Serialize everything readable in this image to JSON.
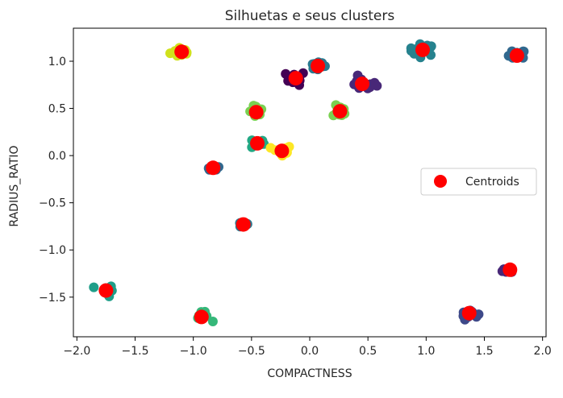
{
  "chart_data": {
    "type": "scatter",
    "title": "Silhuetas e seus clusters",
    "xlabel": "COMPACTNESS",
    "ylabel": "RADIUS_RATIO",
    "xlim": [
      -2.03,
      2.03
    ],
    "ylim": [
      -1.92,
      1.35
    ],
    "xticks": [
      -2.0,
      -1.5,
      -1.0,
      -0.5,
      0.0,
      0.5,
      1.0,
      1.5,
      2.0
    ],
    "xtick_labels": [
      "−2.0",
      "−1.5",
      "−1.0",
      "−0.5",
      "0.0",
      "0.5",
      "1.0",
      "1.5",
      "2.0"
    ],
    "yticks": [
      1.0,
      0.5,
      0.0,
      -0.5,
      -1.0,
      -1.5
    ],
    "ytick_labels": [
      "1.0",
      "0.5",
      "0.0",
      "−0.5",
      "−1.0",
      "−1.5"
    ],
    "grid": false,
    "legend": {
      "position": "center-right",
      "entries": [
        "Centroids"
      ]
    },
    "centroid_color": "#ff0000",
    "clusters": [
      {
        "color": "#d0e11c",
        "centroid": [
          -1.1,
          1.1
        ],
        "spread": [
          0.08,
          0.05
        ],
        "n": 14
      },
      {
        "color": "#26828e",
        "centroid": [
          0.97,
          1.12
        ],
        "spread": [
          0.1,
          0.05
        ],
        "n": 18
      },
      {
        "color": "#31688e",
        "centroid": [
          1.78,
          1.06
        ],
        "spread": [
          0.06,
          0.05
        ],
        "n": 14
      },
      {
        "color": "#440154",
        "centroid": [
          -0.12,
          0.82
        ],
        "spread": [
          0.07,
          0.06
        ],
        "n": 12
      },
      {
        "color": "#2a788e",
        "centroid": [
          0.07,
          0.95
        ],
        "spread": [
          0.07,
          0.04
        ],
        "n": 10
      },
      {
        "color": "#482878",
        "centroid": [
          0.45,
          0.76
        ],
        "spread": [
          0.1,
          0.06
        ],
        "n": 18
      },
      {
        "color": "#7ad151",
        "centroid": [
          -0.46,
          0.46
        ],
        "spread": [
          0.05,
          0.06
        ],
        "n": 12
      },
      {
        "color": "#7ad151",
        "centroid": [
          0.26,
          0.47
        ],
        "spread": [
          0.05,
          0.05
        ],
        "n": 12
      },
      {
        "color": "#22a884",
        "centroid": [
          -0.45,
          0.13
        ],
        "spread": [
          0.05,
          0.05
        ],
        "n": 12
      },
      {
        "color": "#fde725",
        "centroid": [
          -0.24,
          0.05
        ],
        "spread": [
          0.07,
          0.05
        ],
        "n": 12
      },
      {
        "color": "#31688e",
        "centroid": [
          -0.83,
          -0.13
        ],
        "spread": [
          0.06,
          0.03
        ],
        "n": 10
      },
      {
        "color": "#2a788e",
        "centroid": [
          -0.57,
          -0.73
        ],
        "spread": [
          0.05,
          0.03
        ],
        "n": 10
      },
      {
        "color": "#482878",
        "centroid": [
          1.72,
          -1.21
        ],
        "spread": [
          0.05,
          0.03
        ],
        "n": 10
      },
      {
        "color": "#1f9e89",
        "centroid": [
          -1.75,
          -1.43
        ],
        "spread": [
          0.05,
          0.05
        ],
        "n": 14
      },
      {
        "color": "#3e4989",
        "centroid": [
          1.37,
          -1.67
        ],
        "spread": [
          0.06,
          0.05
        ],
        "n": 14
      },
      {
        "color": "#35b779",
        "centroid": [
          -0.93,
          -1.71
        ],
        "spread": [
          0.06,
          0.04
        ],
        "n": 12
      }
    ]
  }
}
